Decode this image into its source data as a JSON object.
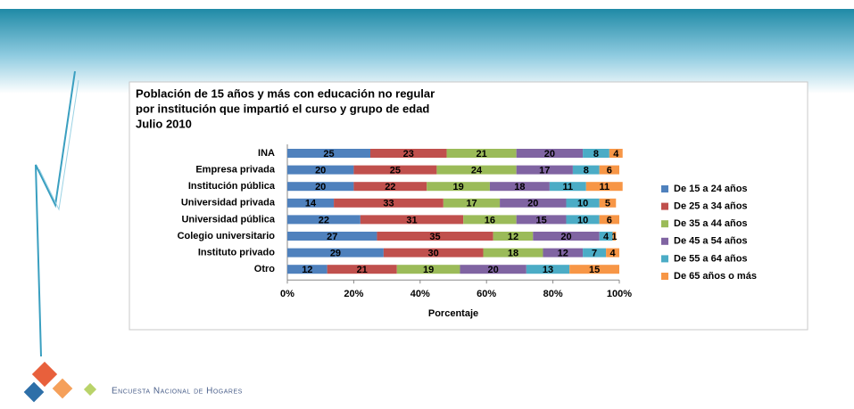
{
  "chart_data": {
    "type": "stacked-bar-horizontal",
    "title": [
      "Población de 15 años y más con educación no regular",
      "por institución que impartió el curso y grupo de edad",
      "Julio 2010"
    ],
    "xlabel": "Porcentaje",
    "categories": [
      "INA",
      "Empresa privada",
      "Institución pública",
      "Universidad privada",
      "Universidad pública",
      "Colegio universitario",
      "Instituto privado",
      "Otro"
    ],
    "series": [
      {
        "name": "De 15 a 24 años",
        "color": "#4f81bd",
        "values": [
          25,
          20,
          20,
          14,
          22,
          27,
          29,
          12
        ]
      },
      {
        "name": "De 25 a 34 años",
        "color": "#c0504d",
        "values": [
          23,
          25,
          22,
          33,
          31,
          35,
          30,
          21
        ]
      },
      {
        "name": "De 35 a 44 años",
        "color": "#9bbb59",
        "values": [
          21,
          24,
          19,
          17,
          16,
          12,
          18,
          19
        ]
      },
      {
        "name": "De 45 a 54 años",
        "color": "#8064a2",
        "values": [
          20,
          17,
          18,
          20,
          15,
          20,
          12,
          20
        ]
      },
      {
        "name": "De 55 a 64 años",
        "color": "#4bacc6",
        "values": [
          8,
          8,
          11,
          10,
          10,
          4,
          7,
          13
        ]
      },
      {
        "name": "De 65 años o más",
        "color": "#f79646",
        "values": [
          4,
          6,
          11,
          5,
          6,
          1,
          4,
          15
        ]
      }
    ],
    "xlim": [
      0,
      100
    ],
    "xticks": [
      {
        "value": 0,
        "label": "0%"
      },
      {
        "value": 20,
        "label": "20%"
      },
      {
        "value": 40,
        "label": "40%"
      },
      {
        "value": 60,
        "label": "60%"
      },
      {
        "value": 80,
        "label": "80%"
      },
      {
        "value": 100,
        "label": "100%"
      }
    ],
    "legend": "right"
  },
  "footer": "Encuesta Nacional de Hogares"
}
